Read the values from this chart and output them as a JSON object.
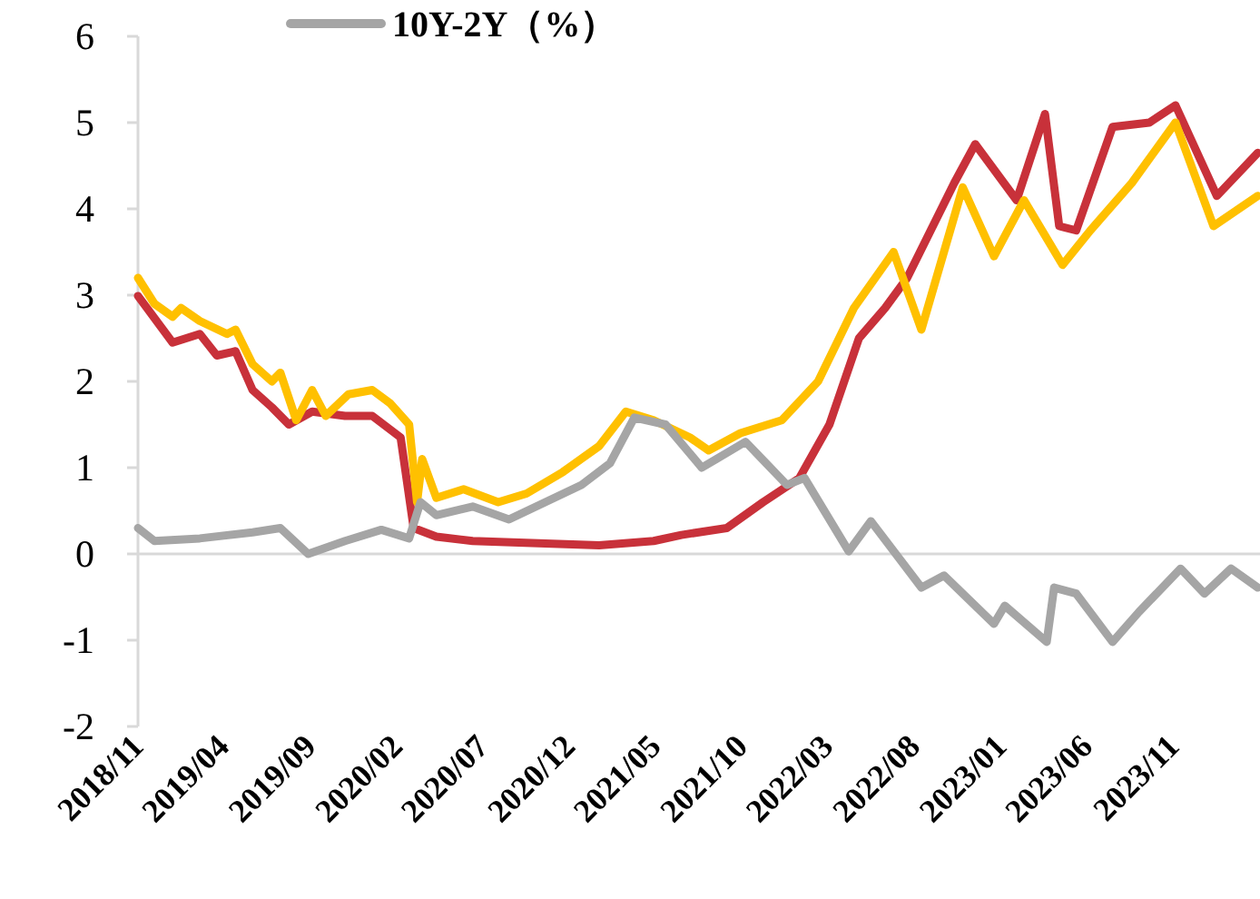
{
  "chart_data": {
    "type": "line",
    "legend": "top",
    "marker": "none",
    "line_style": "solid",
    "grid": false,
    "ref_lines": [
      {
        "axis": "y",
        "value": 0,
        "color": "#d9d9d9"
      }
    ],
    "ylim": [
      -2,
      6
    ],
    "yticks": [
      -2,
      -1,
      0,
      1,
      2,
      3,
      4,
      5,
      6
    ],
    "xlim": [
      "2018-11-01",
      "2024-04-01"
    ],
    "xticks": [
      {
        "value": "2018-11-01",
        "label": "2018/11"
      },
      {
        "value": "2019-04-01",
        "label": "2019/04"
      },
      {
        "value": "2019-09-01",
        "label": "2019/09"
      },
      {
        "value": "2020-02-01",
        "label": "2020/02"
      },
      {
        "value": "2020-07-01",
        "label": "2020/07"
      },
      {
        "value": "2020-12-01",
        "label": "2020/12"
      },
      {
        "value": "2021-05-01",
        "label": "2021/05"
      },
      {
        "value": "2021-10-01",
        "label": "2021/10"
      },
      {
        "value": "2022-03-01",
        "label": "2022/03"
      },
      {
        "value": "2022-08-01",
        "label": "2022/08"
      },
      {
        "value": "2023-01-01",
        "label": "2023/01"
      },
      {
        "value": "2023-06-01",
        "label": "2023/06"
      },
      {
        "value": "2023-11-01",
        "label": "2023/11"
      }
    ],
    "series": [
      {
        "color": "#c8313a",
        "x": [
          "2018-11-01",
          "2019-01-01",
          "2019-02-18",
          "2019-03-20",
          "2019-04-22",
          "2019-05-22",
          "2019-06-25",
          "2019-07-25",
          "2019-09-04",
          "2019-11-01",
          "2019-12-19",
          "2020-02-07",
          "2020-03-01",
          "2020-04-10",
          "2020-06-13",
          "2020-10-19",
          "2021-01-22",
          "2021-04-28",
          "2021-06-16",
          "2021-09-04",
          "2021-11-07",
          "2022-01-10",
          "2022-03-04",
          "2022-04-25",
          "2022-06-10",
          "2022-07-19",
          "2022-10-10",
          "2022-11-16",
          "2023-01-28",
          "2023-03-19",
          "2023-04-13",
          "2023-05-13",
          "2023-07-16",
          "2023-09-19",
          "2023-11-04",
          "2024-01-16",
          "2024-03-28"
        ],
        "values": [
          2.99,
          2.45,
          2.55,
          2.3,
          2.35,
          1.9,
          1.7,
          1.5,
          1.65,
          1.6,
          1.6,
          1.35,
          0.3,
          0.2,
          0.15,
          0.12,
          0.1,
          0.15,
          0.22,
          0.3,
          0.6,
          0.88,
          1.5,
          2.5,
          2.85,
          3.2,
          4.3,
          4.75,
          4.1,
          5.1,
          3.8,
          3.75,
          4.95,
          5.0,
          5.2,
          4.15,
          4.65
        ]
      },
      {
        "color": "#ffc000",
        "x": [
          "2018-11-01",
          "2018-11-30",
          "2019-01-01",
          "2019-01-16",
          "2019-02-18",
          "2019-04-07",
          "2019-04-22",
          "2019-05-22",
          "2019-06-25",
          "2019-07-10",
          "2019-08-07",
          "2019-09-04",
          "2019-09-28",
          "2019-11-07",
          "2019-12-19",
          "2020-01-19",
          "2020-02-22",
          "2020-03-07",
          "2020-03-16",
          "2020-04-10",
          "2020-05-28",
          "2020-07-28",
          "2020-09-16",
          "2020-11-19",
          "2021-01-22",
          "2021-03-10",
          "2021-04-28",
          "2021-07-01",
          "2021-08-03",
          "2021-09-28",
          "2021-12-10",
          "2022-02-12",
          "2022-04-16",
          "2022-06-25",
          "2022-08-13",
          "2022-10-25",
          "2022-12-19",
          "2023-02-10",
          "2023-04-19",
          "2023-06-07",
          "2023-08-19",
          "2023-11-04",
          "2024-01-10",
          "2024-03-28"
        ],
        "values": [
          3.2,
          2.9,
          2.75,
          2.85,
          2.7,
          2.55,
          2.6,
          2.2,
          2.0,
          2.1,
          1.55,
          1.9,
          1.6,
          1.85,
          1.9,
          1.75,
          1.5,
          0.6,
          1.1,
          0.65,
          0.75,
          0.6,
          0.7,
          0.95,
          1.25,
          1.65,
          1.55,
          1.35,
          1.2,
          1.4,
          1.55,
          2.0,
          2.85,
          3.5,
          2.6,
          4.25,
          3.45,
          4.1,
          3.35,
          3.75,
          4.3,
          5.0,
          3.8,
          4.15
        ]
      },
      {
        "name": "10Y-2Y（%）",
        "color": "#a5a5a5",
        "x": [
          "2018-11-01",
          "2018-11-30",
          "2019-02-18",
          "2019-05-22",
          "2019-07-10",
          "2019-08-28",
          "2019-11-01",
          "2020-01-04",
          "2020-02-22",
          "2020-03-13",
          "2020-04-10",
          "2020-06-13",
          "2020-08-16",
          "2020-10-19",
          "2020-12-22",
          "2021-02-10",
          "2021-03-25",
          "2021-05-19",
          "2021-07-22",
          "2021-10-07",
          "2021-12-19",
          "2022-01-19",
          "2022-04-07",
          "2022-05-16",
          "2022-08-13",
          "2022-09-22",
          "2022-12-19",
          "2023-01-07",
          "2023-03-22",
          "2023-04-04",
          "2023-05-13",
          "2023-07-16",
          "2023-09-01",
          "2023-11-13",
          "2023-12-25",
          "2024-02-10",
          "2024-03-28"
        ],
        "values": [
          0.3,
          0.15,
          0.18,
          0.25,
          0.3,
          0.0,
          0.15,
          0.28,
          0.18,
          0.6,
          0.45,
          0.55,
          0.4,
          0.6,
          0.8,
          1.05,
          1.58,
          1.5,
          1.0,
          1.3,
          0.8,
          0.88,
          0.03,
          0.38,
          -0.39,
          -0.25,
          -0.81,
          -0.6,
          -1.02,
          -0.39,
          -0.46,
          -1.02,
          -0.67,
          -0.17,
          -0.46,
          -0.17,
          -0.39
        ]
      }
    ]
  }
}
